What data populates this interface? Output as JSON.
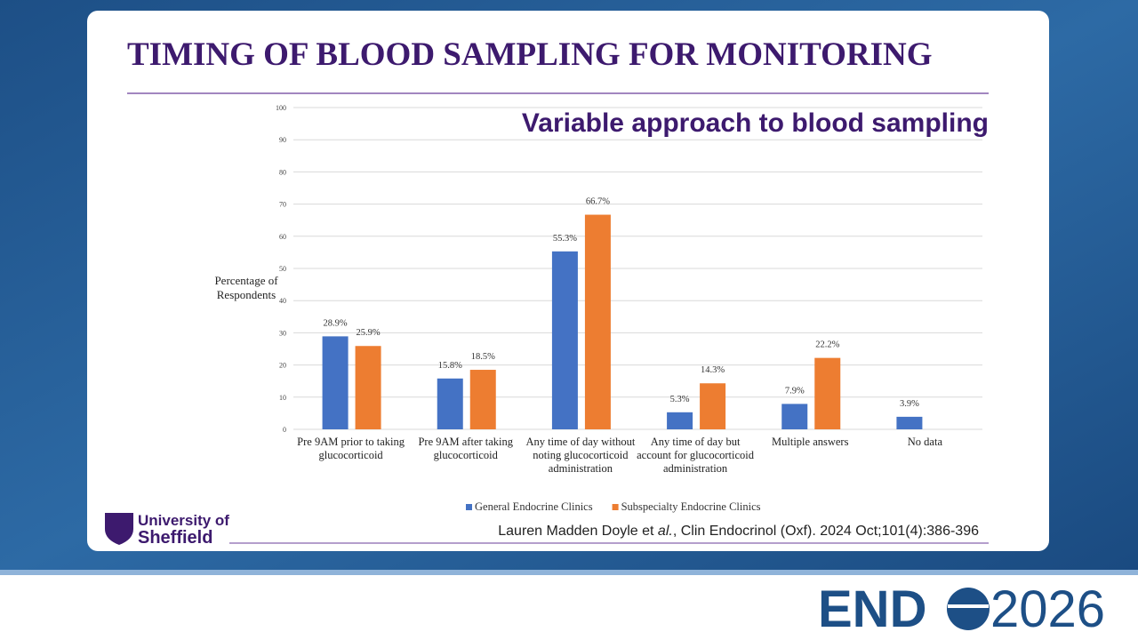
{
  "chart_data": {
    "type": "bar",
    "title": "TIMING OF BLOOD SAMPLING FOR MONITORING",
    "subtitle": "Variable approach to blood sampling",
    "y_label": "Percentage of Respondents",
    "categories": [
      "Pre 9AM prior to taking glucocorticoid",
      "Pre 9AM after taking glucocorticoid",
      "Any time of day without noting glucocorticoid administration",
      "Any time of day but account for glucocorticoid administration",
      "Multiple answers",
      "No data"
    ],
    "series": [
      {
        "name": "General Endocrine Clinics",
        "color": "#4472c4",
        "values": [
          28.9,
          15.8,
          55.3,
          5.3,
          7.9,
          3.9
        ],
        "value_labels": [
          "28.9%",
          "15.8%",
          "55.3%",
          "5.3%",
          "7.9%",
          "3.9%"
        ]
      },
      {
        "name": "Subspecialty Endocrine Clinics",
        "color": "#ed7d31",
        "values": [
          25.9,
          18.5,
          66.7,
          14.3,
          22.2,
          null
        ],
        "value_labels": [
          "25.9%",
          "18.5%",
          "66.7%",
          "14.3%",
          "22.2%",
          null
        ]
      }
    ],
    "ylim": [
      0,
      100
    ],
    "yticks": [
      0,
      10,
      20,
      30,
      40,
      50,
      60,
      70,
      80,
      90,
      100
    ],
    "grid": true,
    "legend": "bottom"
  },
  "citation": {
    "authors": "Lauren Madden Doyle et ",
    "etal": "al.",
    "source": ", Clin Endocrinol (Oxf). 2024 Oct;101(4):386-396"
  },
  "logo": {
    "line1": "University of",
    "line2": "Sheffield"
  },
  "brand": {
    "name": "END",
    "year": "2026"
  }
}
